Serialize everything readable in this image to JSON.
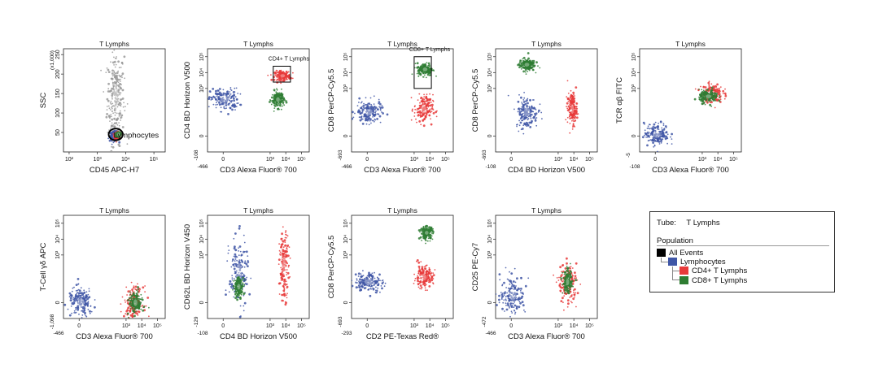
{
  "colors": {
    "all_events": "#000000",
    "lymphocytes": "#3f56a6",
    "cd4": "#e83a3a",
    "cd8": "#2e7d32"
  },
  "chart_data": [
    {
      "type": "scatter",
      "title": "T Lymphs",
      "xlabel": "CD45 APC-H7",
      "ylabel": "SSC",
      "x_ticks": [
        "10²",
        "10³",
        "10⁴",
        "10⁵"
      ],
      "y_ticks": [
        "50",
        "100",
        "150",
        "200",
        "250"
      ],
      "y_unit": "(x1,000)",
      "x_min": "",
      "y_min": "",
      "gates": [
        {
          "label": "Lymphocytes",
          "x": [
            3.4,
            3.9
          ],
          "y": [
            30,
            60
          ],
          "shape": "ellipse"
        }
      ],
      "populations": [
        {
          "name": "All Events",
          "color": "#9a9a9a",
          "x": 3.65,
          "y": 140,
          "sd_x": 0.15,
          "sd_y": 60
        },
        {
          "name": "Lymphocytes",
          "color": "#3f56a6",
          "x": 3.6,
          "y": 40,
          "sd_x": 0.08,
          "sd_y": 6
        },
        {
          "name": "CD4+ T Lymphs",
          "color": "#e83a3a",
          "x": 3.7,
          "y": 42,
          "sd_x": 0.05,
          "sd_y": 4
        },
        {
          "name": "CD8+ T Lymphs",
          "color": "#2e7d32",
          "x": 3.75,
          "y": 45,
          "sd_x": 0.04,
          "sd_y": 3
        }
      ]
    },
    {
      "type": "scatter",
      "title": "T Lymphs",
      "xlabel": "CD3 Alexa Fluor® 700",
      "ylabel": "CD4 BD Horizon V500",
      "x_ticks": [
        "0",
        "10³",
        "10⁴",
        "10⁵"
      ],
      "y_ticks": [
        "0",
        "10³",
        "10⁴",
        "10⁵"
      ],
      "x_min": "-466",
      "y_min": "-108",
      "gates": [
        {
          "label": "CD4+ T Lymphs",
          "x": [
            3.2,
            4.3
          ],
          "y": [
            3.4,
            4.4
          ],
          "shape": "rect"
        }
      ],
      "populations": [
        {
          "name": "Lymphocytes",
          "color": "#3f56a6",
          "x": 0.1,
          "y": 2.3,
          "sd_x": 0.45,
          "sd_y": 0.35
        },
        {
          "name": "CD4+ T Lymphs",
          "color": "#e83a3a",
          "x": 3.8,
          "y": 3.8,
          "sd_x": 0.25,
          "sd_y": 0.15
        },
        {
          "name": "CD8+ T Lymphs",
          "color": "#2e7d32",
          "x": 3.5,
          "y": 2.3,
          "sd_x": 0.2,
          "sd_y": 0.25
        }
      ]
    },
    {
      "type": "scatter",
      "title": "T Lymphs",
      "xlabel": "CD3 Alexa Fluor® 700",
      "ylabel": "CD8 PerCP-Cy5.5",
      "x_ticks": [
        "0",
        "10³",
        "10⁴",
        "10⁵"
      ],
      "y_ticks": [
        "0",
        "10³",
        "10⁴",
        "10⁵"
      ],
      "x_min": "-466",
      "y_min": "-693",
      "gates": [
        {
          "label": "CD8+ T Lymphs",
          "x": [
            3.0,
            4.1
          ],
          "y": [
            3.0,
            5.0
          ],
          "shape": "rect"
        }
      ],
      "populations": [
        {
          "name": "Lymphocytes",
          "color": "#3f56a6",
          "x": 0.1,
          "y": 1.5,
          "sd_x": 0.4,
          "sd_y": 0.35
        },
        {
          "name": "CD4+ T Lymphs",
          "color": "#e83a3a",
          "x": 3.6,
          "y": 1.7,
          "sd_x": 0.3,
          "sd_y": 0.45
        },
        {
          "name": "CD8+ T Lymphs",
          "color": "#2e7d32",
          "x": 3.7,
          "y": 4.2,
          "sd_x": 0.25,
          "sd_y": 0.2
        }
      ]
    },
    {
      "type": "scatter",
      "title": "T Lymphs",
      "xlabel": "CD4 BD Horizon V500",
      "ylabel": "CD8 PerCP-Cy5.5",
      "x_ticks": [
        "0",
        "10³",
        "10⁴",
        "10⁵"
      ],
      "y_ticks": [
        "0",
        "10³",
        "10⁴",
        "10⁵"
      ],
      "x_min": "-108",
      "y_min": "-693",
      "gates": [],
      "populations": [
        {
          "name": "Lymphocytes",
          "color": "#3f56a6",
          "x": 1.0,
          "y": 1.5,
          "sd_x": 0.35,
          "sd_y": 0.5
        },
        {
          "name": "CD4+ T Lymphs",
          "color": "#e83a3a",
          "x": 3.9,
          "y": 1.7,
          "sd_x": 0.15,
          "sd_y": 0.5
        },
        {
          "name": "CD8+ T Lymphs",
          "color": "#2e7d32",
          "x": 1.0,
          "y": 4.5,
          "sd_x": 0.25,
          "sd_y": 0.2
        }
      ]
    },
    {
      "type": "scatter",
      "title": "T Lymphs",
      "xlabel": "CD3 Alexa Fluor® 700",
      "ylabel": "TCR αβ FITC",
      "x_ticks": [
        "0",
        "10³",
        "10⁴",
        "10⁵"
      ],
      "y_ticks": [
        "0",
        "10³",
        "10⁴",
        "10⁵"
      ],
      "x_min": "-108",
      "y_min": "-5",
      "gates": [],
      "populations": [
        {
          "name": "Lymphocytes",
          "color": "#3f56a6",
          "x": 0.1,
          "y": 0.1,
          "sd_x": 0.4,
          "sd_y": 0.35
        },
        {
          "name": "CD4+ T Lymphs",
          "color": "#e83a3a",
          "x": 3.6,
          "y": 2.7,
          "sd_x": 0.35,
          "sd_y": 0.3
        },
        {
          "name": "CD8+ T Lymphs",
          "color": "#2e7d32",
          "x": 3.4,
          "y": 2.5,
          "sd_x": 0.3,
          "sd_y": 0.2
        }
      ]
    },
    {
      "type": "scatter",
      "title": "T Lymphs",
      "xlabel": "CD3 Alexa Fluor® 700",
      "ylabel": "T-Cell γδ APC",
      "x_ticks": [
        "0",
        "10³",
        "10⁴",
        "10⁵"
      ],
      "y_ticks": [
        "0",
        "10³",
        "10⁴",
        "10⁵"
      ],
      "x_min": "-466",
      "y_min": "-1,098",
      "gates": [],
      "populations": [
        {
          "name": "Lymphocytes",
          "color": "#3f56a6",
          "x": 0.1,
          "y": 0.0,
          "sd_x": 0.4,
          "sd_y": 0.45
        },
        {
          "name": "CD4+ T Lymphs",
          "color": "#e83a3a",
          "x": 3.5,
          "y": 0.0,
          "sd_x": 0.3,
          "sd_y": 0.5
        },
        {
          "name": "CD8+ T Lymphs",
          "color": "#2e7d32",
          "x": 3.6,
          "y": 0.0,
          "sd_x": 0.2,
          "sd_y": 0.35
        }
      ]
    },
    {
      "type": "scatter",
      "title": "T Lymphs",
      "xlabel": "CD4 BD Horizon V500",
      "ylabel": "CD62L BD Horizon V450",
      "x_ticks": [
        "0",
        "10³",
        "10⁴",
        "10⁵"
      ],
      "y_ticks": [
        "0",
        "10³",
        "10⁴",
        "10⁵"
      ],
      "x_min": "-108",
      "y_min": "-129",
      "gates": [],
      "populations": [
        {
          "name": "Lymphocytes",
          "color": "#3f56a6",
          "x": 1.0,
          "y": 1.8,
          "sd_x": 0.3,
          "sd_y": 1.1
        },
        {
          "name": "CD4+ T Lymphs",
          "color": "#e83a3a",
          "x": 3.9,
          "y": 2.3,
          "sd_x": 0.15,
          "sd_y": 1.0
        },
        {
          "name": "CD8+ T Lymphs",
          "color": "#2e7d32",
          "x": 1.0,
          "y": 1.0,
          "sd_x": 0.15,
          "sd_y": 0.3
        }
      ]
    },
    {
      "type": "scatter",
      "title": "T Lymphs",
      "xlabel": "CD2 PE-Texas Red®",
      "ylabel": "CD8 PerCP-Cy5.5",
      "x_ticks": [
        "0",
        "10³",
        "10⁴",
        "10⁵"
      ],
      "y_ticks": [
        "0",
        "10³",
        "10⁴",
        "10⁵"
      ],
      "x_min": "-293",
      "y_min": "-693",
      "gates": [],
      "populations": [
        {
          "name": "Lymphocytes",
          "color": "#3f56a6",
          "x": 0.1,
          "y": 1.3,
          "sd_x": 0.45,
          "sd_y": 0.3
        },
        {
          "name": "CD4+ T Lymphs",
          "color": "#e83a3a",
          "x": 3.6,
          "y": 1.6,
          "sd_x": 0.3,
          "sd_y": 0.35
        },
        {
          "name": "CD8+ T Lymphs",
          "color": "#2e7d32",
          "x": 3.8,
          "y": 4.4,
          "sd_x": 0.2,
          "sd_y": 0.2
        }
      ]
    },
    {
      "type": "scatter",
      "title": "T Lymphs",
      "xlabel": "CD3 Alexa Fluor® 700",
      "ylabel": "CD25 PE-Cy7",
      "x_ticks": [
        "0",
        "10³",
        "10⁴",
        "10⁵"
      ],
      "y_ticks": [
        "0",
        "10³",
        "10⁴",
        "10⁵"
      ],
      "x_min": "-466",
      "y_min": "-472",
      "gates": [],
      "populations": [
        {
          "name": "Lymphocytes",
          "color": "#3f56a6",
          "x": 0.1,
          "y": 0.5,
          "sd_x": 0.4,
          "sd_y": 0.6
        },
        {
          "name": "CD4+ T Lymphs",
          "color": "#e83a3a",
          "x": 3.6,
          "y": 1.2,
          "sd_x": 0.3,
          "sd_y": 0.6
        },
        {
          "name": "CD8+ T Lymphs",
          "color": "#2e7d32",
          "x": 3.6,
          "y": 1.3,
          "sd_x": 0.15,
          "sd_y": 0.35
        }
      ]
    }
  ],
  "legend": {
    "tube_label": "Tube:",
    "tube_value": "T Lymphs",
    "population_title": "Population",
    "items": [
      {
        "name": "All Events",
        "color": "#000000",
        "level": 0
      },
      {
        "name": "Lymphocytes",
        "color": "#3f56a6",
        "level": 1
      },
      {
        "name": "CD4+ T Lymphs",
        "color": "#e83a3a",
        "level": 2
      },
      {
        "name": "CD8+ T Lymphs",
        "color": "#2e7d32",
        "level": 2
      }
    ]
  }
}
